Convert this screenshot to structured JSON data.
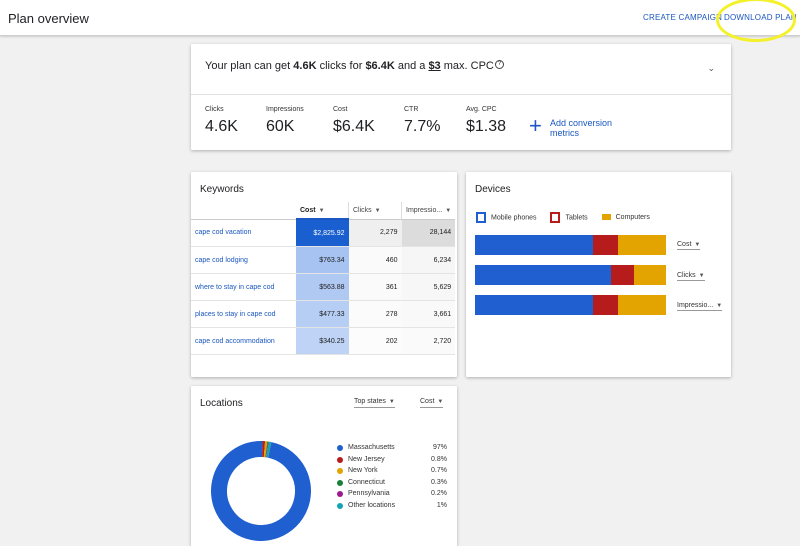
{
  "header": {
    "title": "Plan overview",
    "create_campaign": "CREATE CAMPAIGN",
    "download_plan": "DOWNLOAD PLAN"
  },
  "summary": {
    "text_prefix": "Your plan can get ",
    "clicks": "4.6K",
    "text_mid1": " clicks for ",
    "cost": "$6.4K",
    "text_mid2": " and a ",
    "max_cpc": "$3",
    "text_suffix": " max. CPC",
    "info_icon": "?",
    "metrics": [
      {
        "label": "Clicks",
        "value": "4.6K"
      },
      {
        "label": "Impressions",
        "value": "60K"
      },
      {
        "label": "Cost",
        "value": "$6.4K"
      },
      {
        "label": "CTR",
        "value": "7.7%"
      },
      {
        "label": "Avg. CPC",
        "value": "$1.38"
      }
    ],
    "add_conversion": "Add conversion metrics"
  },
  "keywords": {
    "title": "Keywords",
    "columns": [
      "Cost",
      "Clicks",
      "Impressio..."
    ],
    "rows": [
      {
        "keyword": "cape cod vacation",
        "cost": "$2,825.92",
        "clicks": "2,279",
        "impressions": "28,144"
      },
      {
        "keyword": "cape cod lodging",
        "cost": "$763.34",
        "clicks": "460",
        "impressions": "6,234"
      },
      {
        "keyword": "where to stay in cape cod",
        "cost": "$563.88",
        "clicks": "361",
        "impressions": "5,629"
      },
      {
        "keyword": "places to stay in cape cod",
        "cost": "$477.33",
        "clicks": "278",
        "impressions": "3,661"
      },
      {
        "keyword": "cape cod accommodation",
        "cost": "$340.25",
        "clicks": "202",
        "impressions": "2,720"
      }
    ]
  },
  "devices": {
    "title": "Devices",
    "legend": [
      "Mobile phones",
      "Tablets",
      "Computers"
    ],
    "colors": {
      "mobile": "#1f5fd0",
      "tablets": "#b71c1c",
      "computers": "#e3a300"
    },
    "bars": [
      {
        "metric": "Cost",
        "mobile": 0.62,
        "tablets": 0.13,
        "computers": 0.25
      },
      {
        "metric": "Clicks",
        "mobile": 0.71,
        "tablets": 0.12,
        "computers": 0.17
      },
      {
        "metric": "Impressio...",
        "mobile": 0.62,
        "tablets": 0.13,
        "computers": 0.25
      }
    ]
  },
  "locations": {
    "title": "Locations",
    "filter": "Top states",
    "metric": "Cost",
    "items": [
      {
        "name": "Massachusetts",
        "value": "97%",
        "share": 97,
        "color": "#1f5fd0"
      },
      {
        "name": "New Jersey",
        "value": "0.8%",
        "share": 0.8,
        "color": "#b71c1c"
      },
      {
        "name": "New York",
        "value": "0.7%",
        "share": 0.7,
        "color": "#e3a300"
      },
      {
        "name": "Connecticut",
        "value": "0.3%",
        "share": 0.3,
        "color": "#188038"
      },
      {
        "name": "Pennsylvania",
        "value": "0.2%",
        "share": 0.2,
        "color": "#9c1a8e"
      },
      {
        "name": "Other locations",
        "value": "1%",
        "share": 1,
        "color": "#12a4b4"
      }
    ]
  }
}
